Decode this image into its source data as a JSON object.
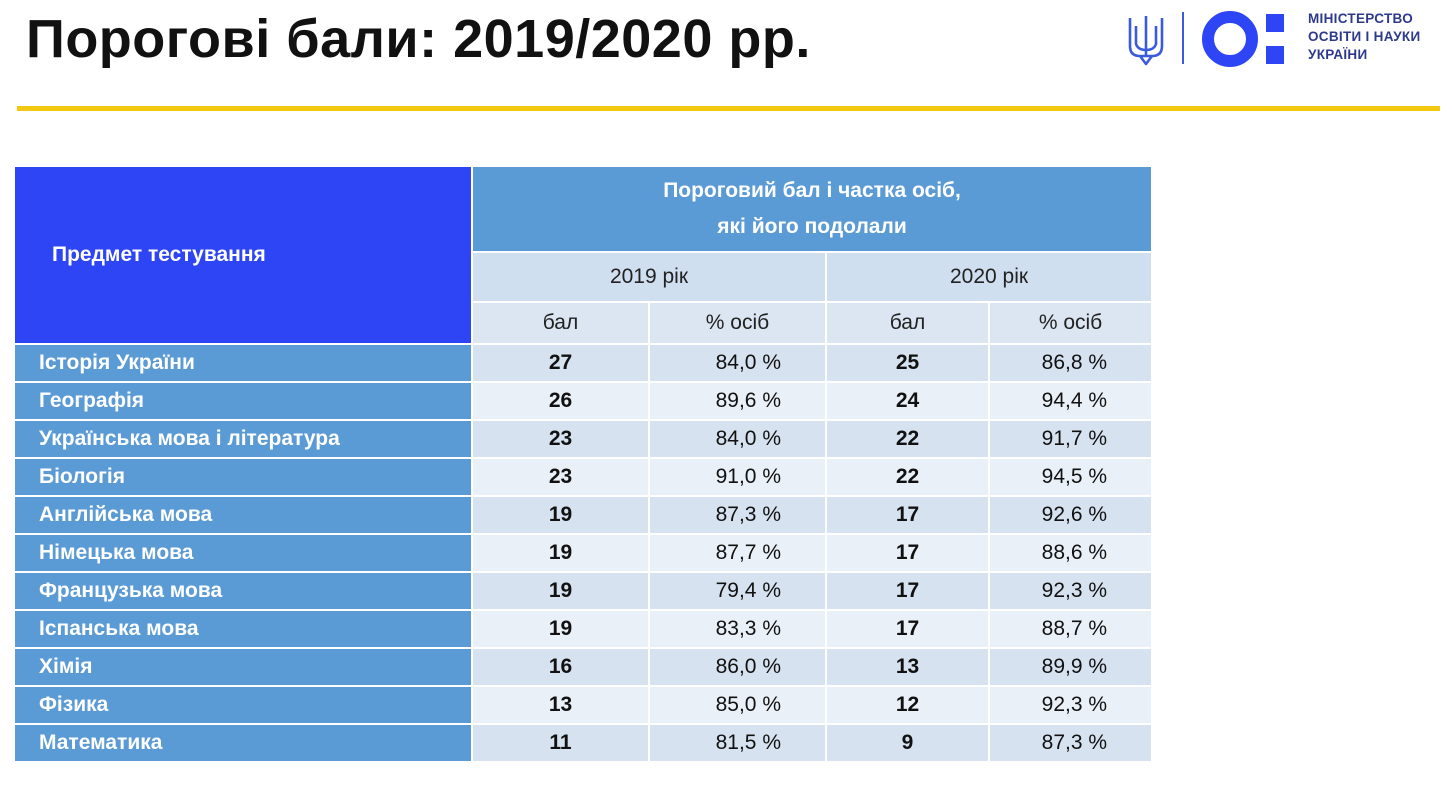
{
  "title": "Порогові бали: 2019/2020 рр.",
  "logo": {
    "line1": "МІНІСТЕРСТВО",
    "line2": "ОСВІТИ І НАУКИ",
    "line3": "УКРАЇНИ",
    "trident_icon": "trident-icon",
    "mark_icon": "mon-mark-icon",
    "trident_color": "#3b5bdb",
    "brand_color": "#2e45f5"
  },
  "table": {
    "subject_header": "Предмет тестування",
    "main_header_line1": "Пороговий бал і частка осіб,",
    "main_header_line2": "які його подолали",
    "year_2019": "2019 рік",
    "year_2020": "2020 рік",
    "col_score": "бал",
    "col_pct": "% осіб",
    "rows": [
      {
        "subject": "Історія України",
        "s2019": "27",
        "p2019": "84,0 %",
        "s2020": "25",
        "p2020": "86,8 %"
      },
      {
        "subject": "Географія",
        "s2019": "26",
        "p2019": "89,6 %",
        "s2020": "24",
        "p2020": "94,4 %"
      },
      {
        "subject": "Українська мова і література",
        "s2019": "23",
        "p2019": "84,0 %",
        "s2020": "22",
        "p2020": "91,7 %"
      },
      {
        "subject": "Біологія",
        "s2019": "23",
        "p2019": "91,0 %",
        "s2020": "22",
        "p2020": "94,5 %"
      },
      {
        "subject": "Англійська мова",
        "s2019": "19",
        "p2019": "87,3 %",
        "s2020": "17",
        "p2020": "92,6 %"
      },
      {
        "subject": "Німецька мова",
        "s2019": "19",
        "p2019": "87,7 %",
        "s2020": "17",
        "p2020": "88,6 %"
      },
      {
        "subject": "Французька мова",
        "s2019": "19",
        "p2019": "79,4 %",
        "s2020": "17",
        "p2020": "92,3 %"
      },
      {
        "subject": "Іспанська мова",
        "s2019": "19",
        "p2019": "83,3 %",
        "s2020": "17",
        "p2020": "88,7 %"
      },
      {
        "subject": "Хімія",
        "s2019": "16",
        "p2019": "86,0 %",
        "s2020": "13",
        "p2020": "89,9 %"
      },
      {
        "subject": "Фізика",
        "s2019": "13",
        "p2019": "85,0 %",
        "s2020": "12",
        "p2020": "92,3 %"
      },
      {
        "subject": "Математика",
        "s2019": "11",
        "p2019": "81,5 %",
        "s2020": "9",
        "p2020": "87,3 %"
      }
    ]
  },
  "colors": {
    "accent_rule": "#f2c811",
    "subject_header_bg": "#2e45f5",
    "header_bg": "#5b9bd5",
    "row_odd_bg": "#d6e2f0",
    "row_even_bg": "#eaf0f8"
  }
}
